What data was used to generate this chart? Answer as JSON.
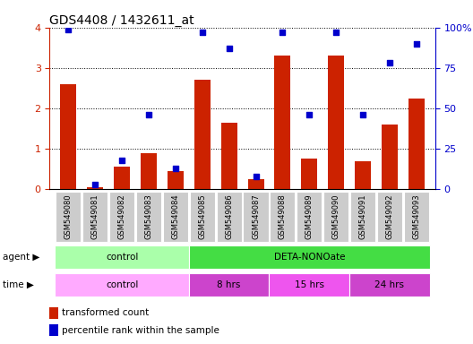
{
  "title": "GDS4408 / 1432611_at",
  "samples": [
    "GSM549080",
    "GSM549081",
    "GSM549082",
    "GSM549083",
    "GSM549084",
    "GSM549085",
    "GSM549086",
    "GSM549087",
    "GSM549088",
    "GSM549089",
    "GSM549090",
    "GSM549091",
    "GSM549092",
    "GSM549093"
  ],
  "red_bars": [
    2.6,
    0.05,
    0.55,
    0.9,
    0.45,
    2.7,
    1.65,
    0.25,
    3.3,
    0.75,
    3.3,
    0.7,
    1.6,
    2.25
  ],
  "blue_dots_pct": [
    99,
    3,
    18,
    46,
    13,
    97,
    87,
    8,
    97,
    46,
    97,
    46,
    78,
    90
  ],
  "ylim_left": [
    0,
    4
  ],
  "ylim_right": [
    0,
    100
  ],
  "yticks_left": [
    0,
    1,
    2,
    3,
    4
  ],
  "yticks_right": [
    0,
    25,
    50,
    75,
    100
  ],
  "bar_color": "#cc2200",
  "dot_color": "#0000cc",
  "bg_color": "#ffffff",
  "agent_ctrl_color": "#aaffaa",
  "agent_deta_color": "#44dd44",
  "time_ctrl_color": "#ffaaff",
  "time_8_color": "#cc44cc",
  "time_15_color": "#ee55ee",
  "time_24_color": "#cc44cc",
  "legend_red": "transformed count",
  "legend_blue": "percentile rank within the sample",
  "axis_color_left": "#cc2200",
  "axis_color_right": "#0000cc",
  "tick_bg_color": "#cccccc",
  "bar_width": 0.6
}
